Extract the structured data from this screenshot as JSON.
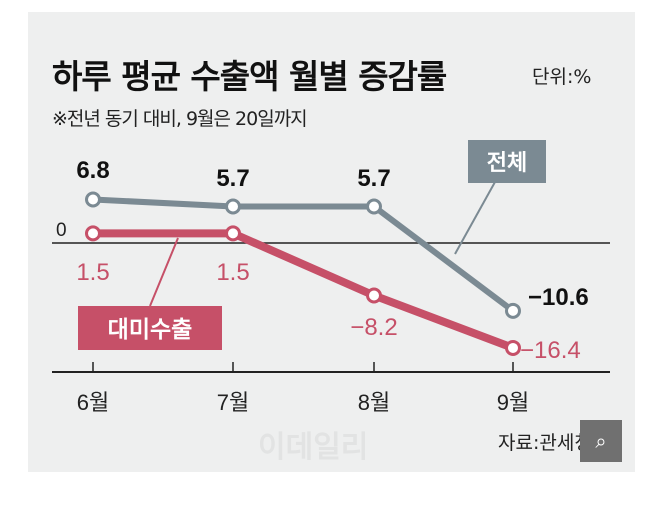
{
  "title": "하루 평균 수출액 월별 증감률",
  "unit": "단위:%",
  "subtitle": "※전년 동기 대비, 9월은 20일까지",
  "source": "자료:관세청",
  "watermark": "이데일리",
  "chart_data": {
    "type": "line",
    "categories": [
      "6월",
      "7월",
      "8월",
      "9월"
    ],
    "zero_label": "0",
    "series": [
      {
        "name": "전체",
        "values": [
          6.8,
          5.7,
          5.7,
          -10.6
        ],
        "labels": [
          "6.8",
          "5.7",
          "5.7",
          "−10.6"
        ],
        "color": "#7b8a93",
        "label_color": "#111111"
      },
      {
        "name": "대미수출",
        "values": [
          1.5,
          1.5,
          -8.2,
          -16.4
        ],
        "labels": [
          "1.5",
          "1.5",
          "−8.2",
          "−16.4"
        ],
        "color": "#c65068",
        "label_color": "#c65068"
      }
    ],
    "grid": false,
    "legend": "inline-callouts"
  }
}
